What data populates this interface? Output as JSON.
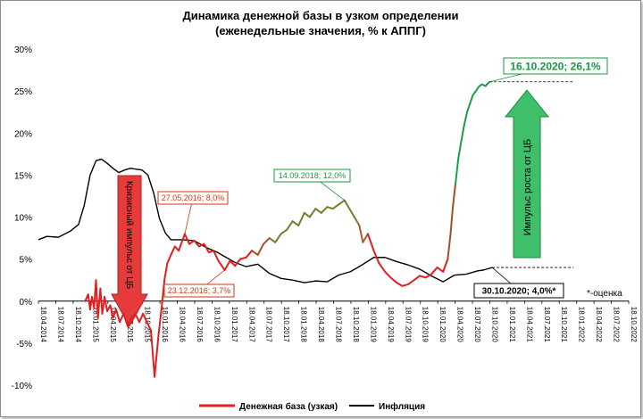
{
  "chart_data": {
    "type": "line",
    "title": "Динамика денежной базы в узком определении",
    "subtitle": "(еженедельные значения, % к АППГ)",
    "ylim": [
      -10,
      30
    ],
    "yticks": [
      "-10%",
      "-5%",
      "0%",
      "5%",
      "10%",
      "15%",
      "20%",
      "25%",
      "30%"
    ],
    "x_start": "2014-04-18",
    "x_end": "2022-10-18",
    "xtick_labels": [
      "18.04.2014",
      "18.07.2014",
      "18.10.2014",
      "18.01.2015",
      "18.04.2015",
      "18.07.2015",
      "18.10.2015",
      "18.01.2016",
      "18.04.2016",
      "18.07.2016",
      "18.10.2016",
      "18.01.2017",
      "18.04.2017",
      "18.07.2017",
      "18.10.2017",
      "18.01.2018",
      "18.04.2018",
      "18.07.2018",
      "18.10.2018",
      "18.01.2019",
      "18.04.2019",
      "18.07.2019",
      "18.10.2019",
      "18.01.2020",
      "18.04.2020",
      "18.07.2020",
      "18.10.2020",
      "18.01.2021",
      "18.04.2021",
      "18.07.2021",
      "18.10.2021",
      "18.01.2022",
      "18.04.2022",
      "18.07.2022",
      "18.10.2022"
    ],
    "grid": false,
    "legend_position": "bottom",
    "series": [
      {
        "name": "Денежная база (узкая)",
        "color": "#e02020",
        "points": [
          [
            "2014-12-20",
            0.0
          ],
          [
            "2015-01-05",
            0.8
          ],
          [
            "2015-01-15",
            -1.0
          ],
          [
            "2015-01-25",
            0.5
          ],
          [
            "2015-02-05",
            -0.8
          ],
          [
            "2015-02-15",
            2.5
          ],
          [
            "2015-02-25",
            -2.0
          ],
          [
            "2015-03-10",
            1.5
          ],
          [
            "2015-03-20",
            -1.5
          ],
          [
            "2015-04-01",
            0.5
          ],
          [
            "2015-04-15",
            -1.2
          ],
          [
            "2015-05-01",
            -0.5
          ],
          [
            "2015-05-15",
            -2.0
          ],
          [
            "2015-06-01",
            -1.0
          ],
          [
            "2015-06-20",
            -2.5
          ],
          [
            "2015-07-10",
            -1.5
          ],
          [
            "2015-08-01",
            -3.0
          ],
          [
            "2015-08-20",
            -2.0
          ],
          [
            "2015-09-10",
            -1.5
          ],
          [
            "2015-10-01",
            -2.5
          ],
          [
            "2015-10-20",
            -1.5
          ],
          [
            "2015-11-10",
            -2.5
          ],
          [
            "2015-12-01",
            -3.5
          ],
          [
            "2015-12-20",
            -9.0
          ],
          [
            "2016-01-10",
            -4.0
          ],
          [
            "2016-01-25",
            -1.0
          ],
          [
            "2016-02-10",
            2.5
          ],
          [
            "2016-02-25",
            4.5
          ],
          [
            "2016-03-15",
            5.5
          ],
          [
            "2016-04-05",
            6.5
          ],
          [
            "2016-04-25",
            6.0
          ],
          [
            "2016-05-27",
            8.0
          ],
          [
            "2016-06-20",
            6.8
          ],
          [
            "2016-07-15",
            7.2
          ],
          [
            "2016-08-10",
            6.5
          ],
          [
            "2016-09-05",
            6.8
          ],
          [
            "2016-10-01",
            5.8
          ],
          [
            "2016-10-25",
            6.0
          ],
          [
            "2016-11-20",
            4.8
          ],
          [
            "2016-12-23",
            3.7
          ],
          [
            "2017-01-20",
            4.8
          ],
          [
            "2017-02-15",
            4.2
          ],
          [
            "2017-03-15",
            5.0
          ],
          [
            "2017-04-15",
            5.2
          ],
          [
            "2017-05-15",
            6.0
          ],
          [
            "2017-06-15",
            5.5
          ],
          [
            "2017-07-15",
            6.8
          ],
          [
            "2017-08-15",
            7.5
          ],
          [
            "2017-09-15",
            7.0
          ],
          [
            "2017-10-15",
            8.0
          ],
          [
            "2017-11-15",
            8.5
          ],
          [
            "2017-12-15",
            9.5
          ],
          [
            "2018-01-15",
            9.0
          ],
          [
            "2018-02-15",
            10.5
          ],
          [
            "2018-03-15",
            10.0
          ],
          [
            "2018-04-15",
            11.0
          ],
          [
            "2018-05-15",
            10.5
          ],
          [
            "2018-06-15",
            11.2
          ],
          [
            "2018-07-15",
            11.0
          ],
          [
            "2018-08-15",
            11.5
          ],
          [
            "2018-09-14",
            12.0
          ],
          [
            "2018-10-10",
            11.0
          ],
          [
            "2018-11-05",
            10.0
          ],
          [
            "2018-12-01",
            9.0
          ],
          [
            "2018-12-20",
            7.0
          ],
          [
            "2019-01-15",
            8.0
          ],
          [
            "2019-02-15",
            6.0
          ],
          [
            "2019-03-15",
            4.5
          ],
          [
            "2019-04-15",
            3.5
          ],
          [
            "2019-05-15",
            2.8
          ],
          [
            "2019-06-15",
            2.2
          ],
          [
            "2019-07-15",
            1.8
          ],
          [
            "2019-08-15",
            2.0
          ],
          [
            "2019-09-15",
            2.5
          ],
          [
            "2019-10-15",
            3.0
          ],
          [
            "2019-11-15",
            2.8
          ],
          [
            "2019-12-15",
            3.2
          ],
          [
            "2020-01-15",
            4.0
          ],
          [
            "2020-02-15",
            3.5
          ],
          [
            "2020-03-10",
            5.0
          ],
          [
            "2020-03-25",
            8.0
          ],
          [
            "2020-04-05",
            11.0
          ],
          [
            "2020-04-20",
            14.0
          ],
          [
            "2020-05-05",
            17.0
          ],
          [
            "2020-05-20",
            19.0
          ],
          [
            "2020-06-05",
            21.0
          ],
          [
            "2020-06-20",
            22.5
          ],
          [
            "2020-07-05",
            23.5
          ],
          [
            "2020-07-20",
            24.5
          ],
          [
            "2020-08-05",
            25.0
          ],
          [
            "2020-08-20",
            25.5
          ],
          [
            "2020-09-05",
            25.8
          ],
          [
            "2020-09-25",
            25.6
          ],
          [
            "2020-10-16",
            26.1
          ]
        ]
      },
      {
        "name": "Инфляция",
        "color": "#000000",
        "points": [
          [
            "2014-04-18",
            7.3
          ],
          [
            "2014-06-01",
            7.7
          ],
          [
            "2014-08-01",
            7.6
          ],
          [
            "2014-10-01",
            8.3
          ],
          [
            "2014-11-15",
            9.1
          ],
          [
            "2014-12-15",
            11.4
          ],
          [
            "2015-01-15",
            15.0
          ],
          [
            "2015-02-15",
            16.7
          ],
          [
            "2015-03-15",
            16.9
          ],
          [
            "2015-04-15",
            16.4
          ],
          [
            "2015-05-15",
            15.8
          ],
          [
            "2015-06-15",
            15.3
          ],
          [
            "2015-07-15",
            15.6
          ],
          [
            "2015-08-15",
            15.8
          ],
          [
            "2015-09-15",
            15.7
          ],
          [
            "2015-10-15",
            15.6
          ],
          [
            "2015-11-15",
            15.0
          ],
          [
            "2015-12-15",
            12.9
          ],
          [
            "2016-01-15",
            9.8
          ],
          [
            "2016-02-15",
            8.1
          ],
          [
            "2016-03-15",
            7.3
          ],
          [
            "2016-05-15",
            7.3
          ],
          [
            "2016-07-15",
            7.2
          ],
          [
            "2016-09-15",
            6.4
          ],
          [
            "2016-11-15",
            5.8
          ],
          [
            "2016-12-15",
            5.4
          ],
          [
            "2017-02-15",
            4.6
          ],
          [
            "2017-04-15",
            4.1
          ],
          [
            "2017-06-15",
            4.4
          ],
          [
            "2017-08-15",
            3.3
          ],
          [
            "2017-10-15",
            2.7
          ],
          [
            "2017-12-15",
            2.5
          ],
          [
            "2018-02-15",
            2.2
          ],
          [
            "2018-04-15",
            2.4
          ],
          [
            "2018-06-15",
            2.3
          ],
          [
            "2018-08-15",
            3.1
          ],
          [
            "2018-10-15",
            3.5
          ],
          [
            "2018-12-15",
            4.3
          ],
          [
            "2019-02-15",
            5.2
          ],
          [
            "2019-04-15",
            5.2
          ],
          [
            "2019-06-15",
            4.7
          ],
          [
            "2019-08-15",
            4.3
          ],
          [
            "2019-10-15",
            3.8
          ],
          [
            "2019-12-15",
            3.0
          ],
          [
            "2020-02-15",
            2.3
          ],
          [
            "2020-04-15",
            3.1
          ],
          [
            "2020-06-15",
            3.2
          ],
          [
            "2020-08-15",
            3.6
          ],
          [
            "2020-09-15",
            3.7
          ],
          [
            "2020-10-30",
            4.0
          ]
        ]
      }
    ],
    "reference_lines": [
      {
        "from": "2020-10-16",
        "to": "2022-01-01",
        "y": 26.1
      },
      {
        "from": "2020-10-30",
        "to": "2022-01-01",
        "y": 4.0
      }
    ],
    "annotations": [
      {
        "text": "27.05.2016; 8,0%",
        "color": "#d03a10",
        "box": true
      },
      {
        "text": "23.12.2016; 3,7%",
        "color": "#d03a10",
        "box": true
      },
      {
        "text": "14.09.2018; 12,0%",
        "color": "#1a9a40",
        "box": true
      },
      {
        "text": "16.10.2020; 26,1%",
        "color": "#1a9a40",
        "box": true
      },
      {
        "text": "30.10.2020; 4,0%*",
        "color": "#000000",
        "box": true
      },
      {
        "text": "*-оценка",
        "color": "#000000",
        "box": false
      }
    ],
    "arrows": [
      {
        "text": "Кризисный импульс от ЦБ",
        "direction": "down",
        "color": "#e53b3b"
      },
      {
        "text": "Импульс роста от ЦБ",
        "direction": "up",
        "color": "#3fbf6a"
      }
    ]
  }
}
